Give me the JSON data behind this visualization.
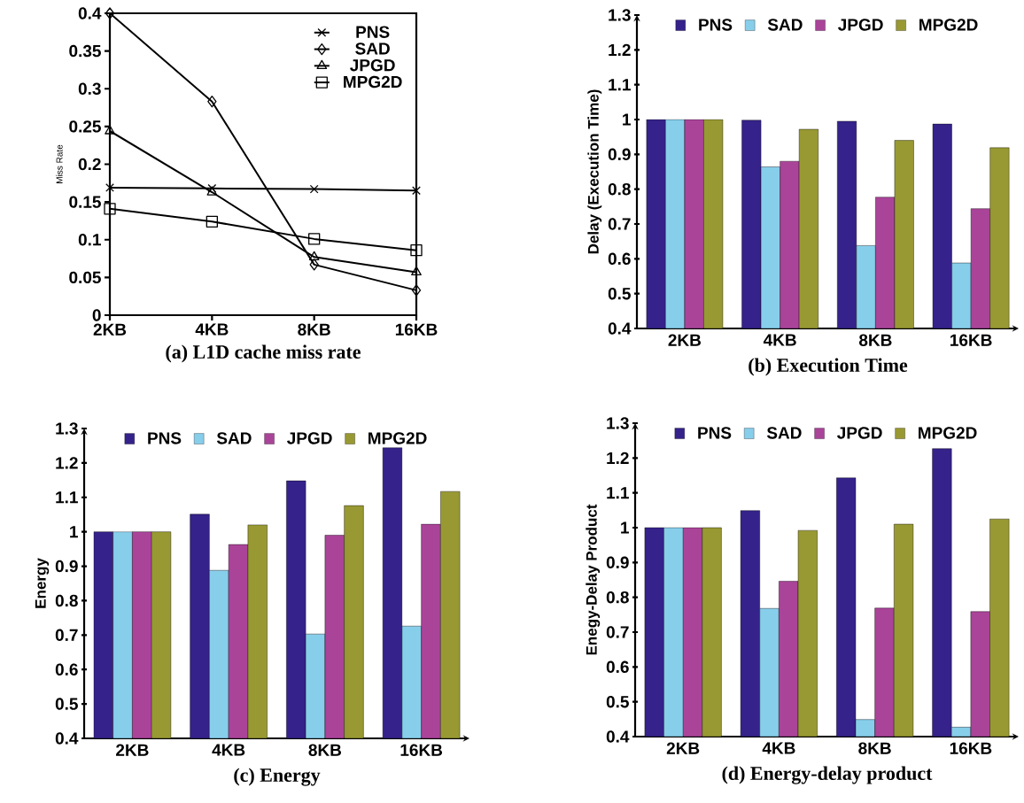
{
  "chart_data": [
    {
      "type": "line",
      "title": "(a) L1D cache miss rate",
      "ylabel": "Miss Rate",
      "categories": [
        "2KB",
        "4KB",
        "8KB",
        "16KB"
      ],
      "series": [
        {
          "name": "PNS",
          "color": "#000000",
          "marker": "cross",
          "values": [
            0.169,
            0.168,
            0.167,
            0.165
          ]
        },
        {
          "name": "SAD",
          "color": "#000000",
          "marker": "diamond",
          "values": [
            0.4,
            0.283,
            0.067,
            0.033
          ]
        },
        {
          "name": "JPGD",
          "color": "#000000",
          "marker": "triangle",
          "values": [
            0.244,
            0.163,
            0.077,
            0.057
          ]
        },
        {
          "name": "MPG2D",
          "color": "#000000",
          "marker": "square",
          "values": [
            0.141,
            0.124,
            0.101,
            0.086
          ]
        }
      ],
      "ylim": [
        0,
        0.4
      ],
      "yticks": [
        0,
        0.05,
        0.1,
        0.15,
        0.2,
        0.25,
        0.3,
        0.35,
        0.4
      ],
      "legend": "top right"
    },
    {
      "type": "bar",
      "title": "(b) Execution Time",
      "ylabel": "Delay (Execution Time)",
      "categories": [
        "2KB",
        "4KB",
        "8KB",
        "16KB"
      ],
      "series": [
        {
          "name": "PNS",
          "color": "#35228a",
          "values": [
            1,
            0.998,
            0.995,
            0.987
          ]
        },
        {
          "name": "SAD",
          "color": "#87ceeb",
          "values": [
            1,
            0.864,
            0.638,
            0.588
          ]
        },
        {
          "name": "JPGD",
          "color": "#aa4499",
          "values": [
            1,
            0.88,
            0.777,
            0.744
          ]
        },
        {
          "name": "MPG2D",
          "color": "#999933",
          "values": [
            1,
            0.972,
            0.94,
            0.919
          ]
        }
      ],
      "ylim": [
        0.4,
        1.3
      ],
      "yticks": [
        0.4,
        0.5,
        0.6,
        0.7,
        0.8,
        0.9,
        1,
        1.1,
        1.2,
        1.3
      ],
      "legend": "top"
    },
    {
      "type": "bar",
      "title": "(c) Energy",
      "ylabel": "Energy",
      "categories": [
        "2KB",
        "4KB",
        "8KB",
        "16KB"
      ],
      "series": [
        {
          "name": "PNS",
          "color": "#35228a",
          "values": [
            1,
            1.051,
            1.148,
            1.244
          ]
        },
        {
          "name": "SAD",
          "color": "#87ceeb",
          "values": [
            1,
            0.888,
            0.703,
            0.726
          ]
        },
        {
          "name": "JPGD",
          "color": "#aa4499",
          "values": [
            1,
            0.963,
            0.99,
            1.022
          ]
        },
        {
          "name": "MPG2D",
          "color": "#999933",
          "values": [
            1,
            1.02,
            1.076,
            1.117
          ]
        }
      ],
      "ylim": [
        0.4,
        1.3
      ],
      "yticks": [
        0.4,
        0.5,
        0.6,
        0.7,
        0.8,
        0.9,
        1,
        1.1,
        1.2,
        1.3
      ],
      "legend": "top"
    },
    {
      "type": "bar",
      "title": "(d) Energy-delay product",
      "ylabel": "Enegy-Delay Product",
      "categories": [
        "2KB",
        "4KB",
        "8KB",
        "16KB"
      ],
      "series": [
        {
          "name": "PNS",
          "color": "#35228a",
          "values": [
            1,
            1.049,
            1.143,
            1.227
          ]
        },
        {
          "name": "SAD",
          "color": "#87ceeb",
          "values": [
            1,
            0.768,
            0.449,
            0.427
          ]
        },
        {
          "name": "JPGD",
          "color": "#aa4499",
          "values": [
            1,
            0.846,
            0.769,
            0.759
          ]
        },
        {
          "name": "MPG2D",
          "color": "#999933",
          "values": [
            1,
            0.992,
            1.01,
            1.025
          ]
        }
      ],
      "ylim": [
        0.4,
        1.3
      ],
      "yticks": [
        0.4,
        0.5,
        0.6,
        0.7,
        0.8,
        0.9,
        1,
        1.1,
        1.2,
        1.3
      ],
      "legend": "top"
    }
  ]
}
